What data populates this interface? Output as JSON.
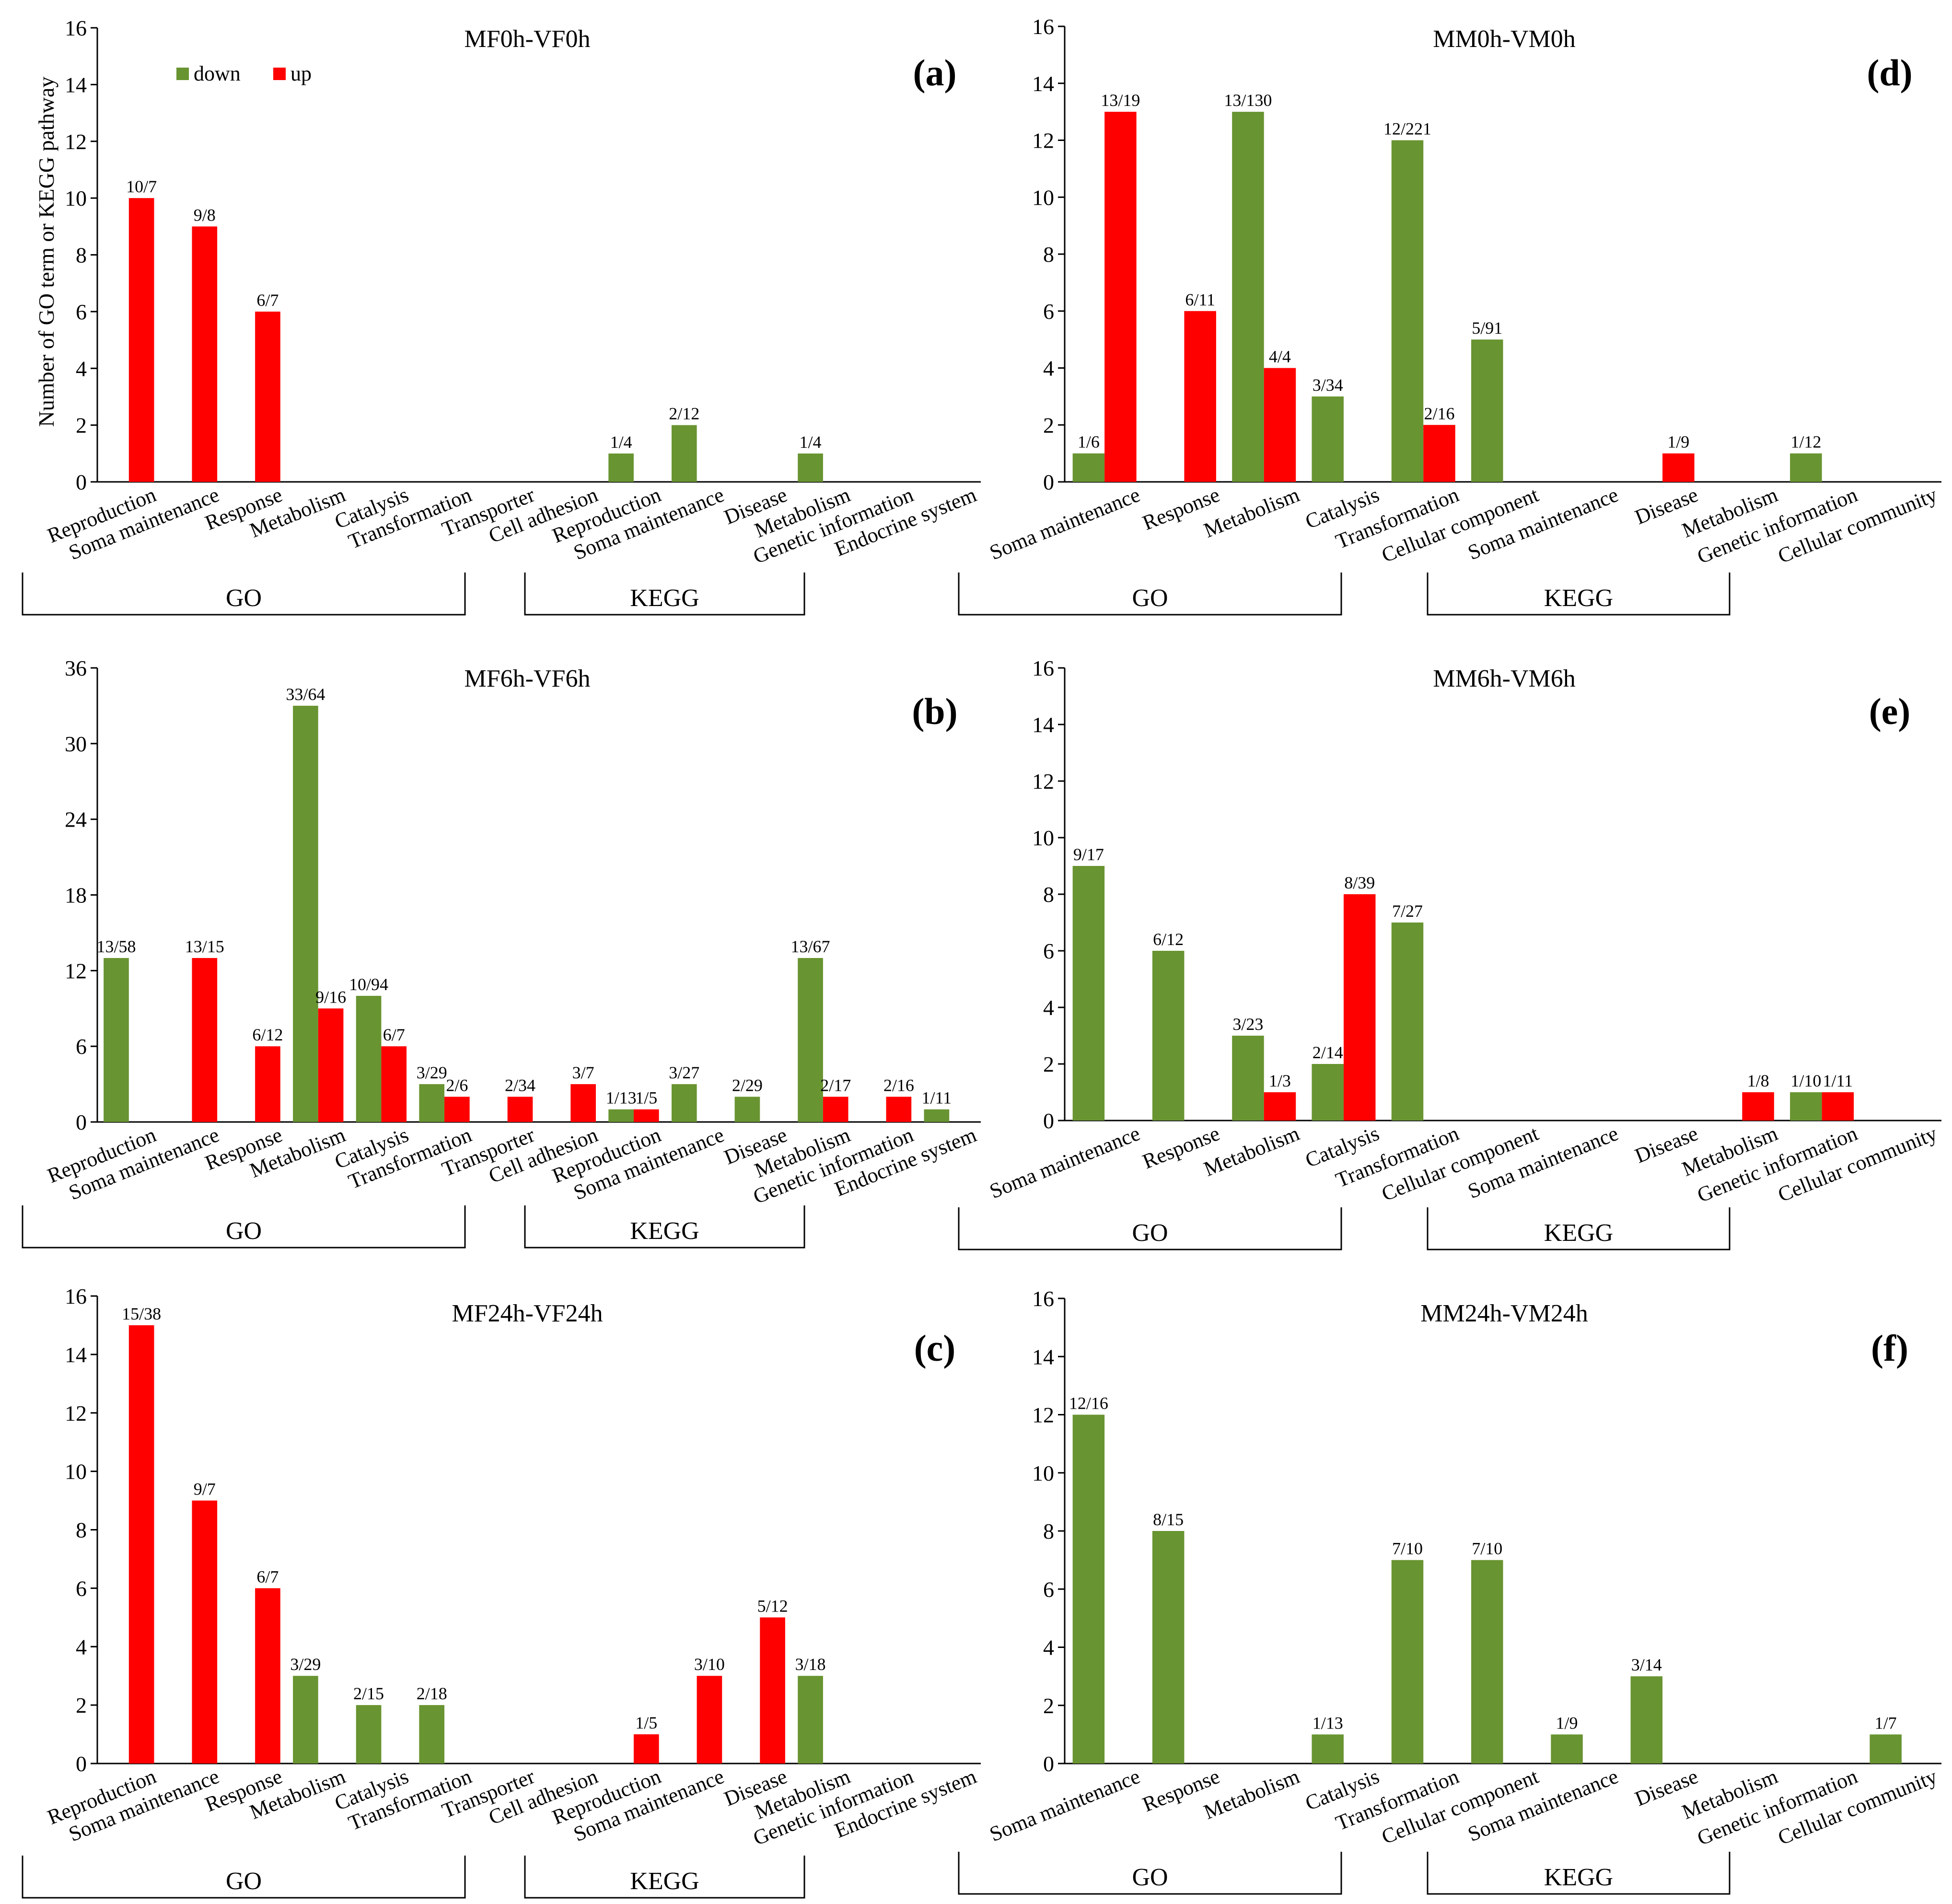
{
  "colors": {
    "down": "#689431",
    "up": "#ff0000"
  },
  "legend": [
    {
      "key": "down",
      "label": "down"
    },
    {
      "key": "up",
      "label": "up"
    }
  ],
  "ylabel": "Number of GO term or KEGG pathway",
  "chart_data": [
    {
      "id": "a",
      "letter": "(a)",
      "title": "MF0h-VF0h",
      "type": "bar",
      "ylim": [
        0,
        16
      ],
      "yticks": [
        "0",
        "2",
        "4",
        "6",
        "8",
        "10",
        "12",
        "14",
        "16"
      ],
      "categories": [
        "Reproduction",
        "Soma maintenance",
        "Response",
        "Metabolism",
        "Catalysis",
        "Transformation",
        "Transporter",
        "Cell adhesion",
        "Reproduction",
        "Soma maintenance",
        "Disease",
        "Metabolism",
        "Genetic information",
        "Endocrine system"
      ],
      "groups": [
        {
          "label": "GO",
          "from": 0,
          "to": 6
        },
        {
          "label": "KEGG",
          "from": 8,
          "to": 11
        }
      ],
      "series": [
        {
          "name": "down",
          "values": [
            0,
            0,
            0,
            0,
            0,
            0,
            0,
            0,
            1,
            2,
            0,
            1,
            0,
            0
          ],
          "labels": [
            "",
            "",
            "",
            "",
            "",
            "",
            "",
            "",
            "1/4",
            "2/12",
            "",
            "1/4",
            "",
            ""
          ]
        },
        {
          "name": "up",
          "values": [
            10,
            9,
            6,
            0,
            0,
            0,
            0,
            0,
            0,
            0,
            0,
            0,
            0,
            0
          ],
          "labels": [
            "10/7",
            "9/8",
            "6/7",
            "",
            "",
            "",
            "",
            "",
            "",
            "",
            "",
            "",
            "",
            ""
          ]
        }
      ]
    },
    {
      "id": "b",
      "letter": "(b)",
      "title": "MF6h-VF6h",
      "type": "bar",
      "ylim": [
        0,
        36
      ],
      "yticks": [
        "0",
        "6",
        "12",
        "18",
        "24",
        "30",
        "36"
      ],
      "categories": [
        "Reproduction",
        "Soma maintenance",
        "Response",
        "Metabolism",
        "Catalysis",
        "Transformation",
        "Transporter",
        "Cell adhesion",
        "Reproduction",
        "Soma maintenance",
        "Disease",
        "Metabolism",
        "Genetic information",
        "Endocrine system"
      ],
      "groups": [
        {
          "label": "GO",
          "from": 0,
          "to": 6
        },
        {
          "label": "KEGG",
          "from": 8,
          "to": 11
        }
      ],
      "series": [
        {
          "name": "down",
          "values": [
            13,
            0,
            0,
            33,
            10,
            3,
            0,
            0,
            1,
            3,
            2,
            13,
            0,
            1
          ],
          "labels": [
            "13/58",
            "",
            "",
            "33/64",
            "10/94",
            "3/29",
            "",
            "",
            "1/13",
            "3/27",
            "2/29",
            "13/67",
            "",
            "1/11"
          ]
        },
        {
          "name": "up",
          "values": [
            0,
            13,
            6,
            9,
            6,
            2,
            2,
            3,
            1,
            0,
            0,
            2,
            2,
            0
          ],
          "labels": [
            "",
            "13/15",
            "6/12",
            "9/16",
            "6/7",
            "2/6",
            "2/34",
            "3/7",
            "1/5",
            "",
            "",
            "2/17",
            "2/16",
            ""
          ]
        }
      ]
    },
    {
      "id": "c",
      "letter": "(c)",
      "title": "MF24h-VF24h",
      "type": "bar",
      "ylim": [
        0,
        16
      ],
      "yticks": [
        "0",
        "2",
        "4",
        "6",
        "8",
        "10",
        "12",
        "14",
        "16"
      ],
      "categories": [
        "Reproduction",
        "Soma maintenance",
        "Response",
        "Metabolism",
        "Catalysis",
        "Transformation",
        "Transporter",
        "Cell adhesion",
        "Reproduction",
        "Soma maintenance",
        "Disease",
        "Metabolism",
        "Genetic information",
        "Endocrine system"
      ],
      "groups": [
        {
          "label": "GO",
          "from": 0,
          "to": 6
        },
        {
          "label": "KEGG",
          "from": 8,
          "to": 11
        }
      ],
      "series": [
        {
          "name": "down",
          "values": [
            0,
            0,
            0,
            3,
            2,
            2,
            0,
            0,
            0,
            0,
            0,
            3,
            0,
            0
          ],
          "labels": [
            "",
            "",
            "",
            "3/29",
            "2/15",
            "2/18",
            "",
            "",
            "",
            "",
            "",
            "3/18",
            "",
            ""
          ]
        },
        {
          "name": "up",
          "values": [
            15,
            9,
            6,
            0,
            0,
            0,
            0,
            0,
            1,
            3,
            5,
            0,
            0,
            0
          ],
          "labels": [
            "15/38",
            "9/7",
            "6/7",
            "",
            "",
            "",
            "",
            "",
            "1/5",
            "3/10",
            "5/12",
            "",
            "",
            ""
          ]
        }
      ]
    },
    {
      "id": "d",
      "letter": "(d)",
      "title": "MM0h-VM0h",
      "type": "bar",
      "ylim": [
        0,
        16
      ],
      "yticks": [
        "0",
        "2",
        "4",
        "6",
        "8",
        "10",
        "12",
        "14",
        "16"
      ],
      "categories": [
        "Soma maintenance",
        "Response",
        "Metabolism",
        "Catalysis",
        "Transformation",
        "Cellular component",
        "Soma maintenance",
        "Disease",
        "Metabolism",
        "Genetic information",
        "Cellular community"
      ],
      "groups": [
        {
          "label": "GO",
          "from": 0,
          "to": 4
        },
        {
          "label": "KEGG",
          "from": 6,
          "to": 9
        }
      ],
      "series": [
        {
          "name": "down",
          "values": [
            1,
            0,
            13,
            3,
            12,
            5,
            0,
            0,
            0,
            1,
            0
          ],
          "labels": [
            "1/6",
            "",
            "13/130",
            "3/34",
            "12/221",
            "5/91",
            "",
            "",
            "",
            "1/12",
            ""
          ]
        },
        {
          "name": "up",
          "values": [
            13,
            6,
            4,
            0,
            2,
            0,
            0,
            1,
            0,
            0,
            0
          ],
          "labels": [
            "13/19",
            "6/11",
            "4/4",
            "",
            "2/16",
            "",
            "",
            "1/9",
            "",
            "",
            ""
          ]
        }
      ]
    },
    {
      "id": "e",
      "letter": "(e)",
      "title": "MM6h-VM6h",
      "type": "bar",
      "ylim": [
        0,
        16
      ],
      "yticks": [
        "0",
        "2",
        "4",
        "6",
        "8",
        "10",
        "12",
        "14",
        "16"
      ],
      "categories": [
        "Soma maintenance",
        "Response",
        "Metabolism",
        "Catalysis",
        "Transformation",
        "Cellular component",
        "Soma maintenance",
        "Disease",
        "Metabolism",
        "Genetic information",
        "Cellular community"
      ],
      "groups": [
        {
          "label": "GO",
          "from": 0,
          "to": 4
        },
        {
          "label": "KEGG",
          "from": 6,
          "to": 9
        }
      ],
      "series": [
        {
          "name": "down",
          "values": [
            9,
            6,
            3,
            2,
            7,
            0,
            0,
            0,
            0,
            1,
            0
          ],
          "labels": [
            "9/17",
            "6/12",
            "3/23",
            "2/14",
            "7/27",
            "",
            "",
            "",
            "",
            "1/10",
            ""
          ]
        },
        {
          "name": "up",
          "values": [
            0,
            0,
            1,
            8,
            0,
            0,
            0,
            0,
            1,
            1,
            0
          ],
          "labels": [
            "",
            "",
            "1/3",
            "8/39",
            "",
            "",
            "",
            "",
            "1/8",
            "1/11",
            ""
          ]
        }
      ]
    },
    {
      "id": "f",
      "letter": "(f)",
      "title": "MM24h-VM24h",
      "type": "bar",
      "ylim": [
        0,
        16
      ],
      "yticks": [
        "0",
        "2",
        "4",
        "6",
        "8",
        "10",
        "12",
        "14",
        "16"
      ],
      "categories": [
        "Soma maintenance",
        "Response",
        "Metabolism",
        "Catalysis",
        "Transformation",
        "Cellular component",
        "Soma maintenance",
        "Disease",
        "Metabolism",
        "Genetic information",
        "Cellular community"
      ],
      "groups": [
        {
          "label": "GO",
          "from": 0,
          "to": 4
        },
        {
          "label": "KEGG",
          "from": 6,
          "to": 9
        }
      ],
      "series": [
        {
          "name": "down",
          "values": [
            12,
            8,
            0,
            1,
            7,
            7,
            1,
            3,
            0,
            0,
            1
          ],
          "labels": [
            "12/16",
            "8/15",
            "",
            "1/13",
            "7/10",
            "7/10",
            "1/9",
            "3/14",
            "",
            "",
            "1/7"
          ]
        },
        {
          "name": "up",
          "values": [
            0,
            0,
            0,
            0,
            0,
            0,
            0,
            0,
            0,
            0,
            0
          ],
          "labels": [
            "",
            "",
            "",
            "",
            "",
            "",
            "",
            "",
            "",
            "",
            ""
          ]
        }
      ]
    }
  ]
}
